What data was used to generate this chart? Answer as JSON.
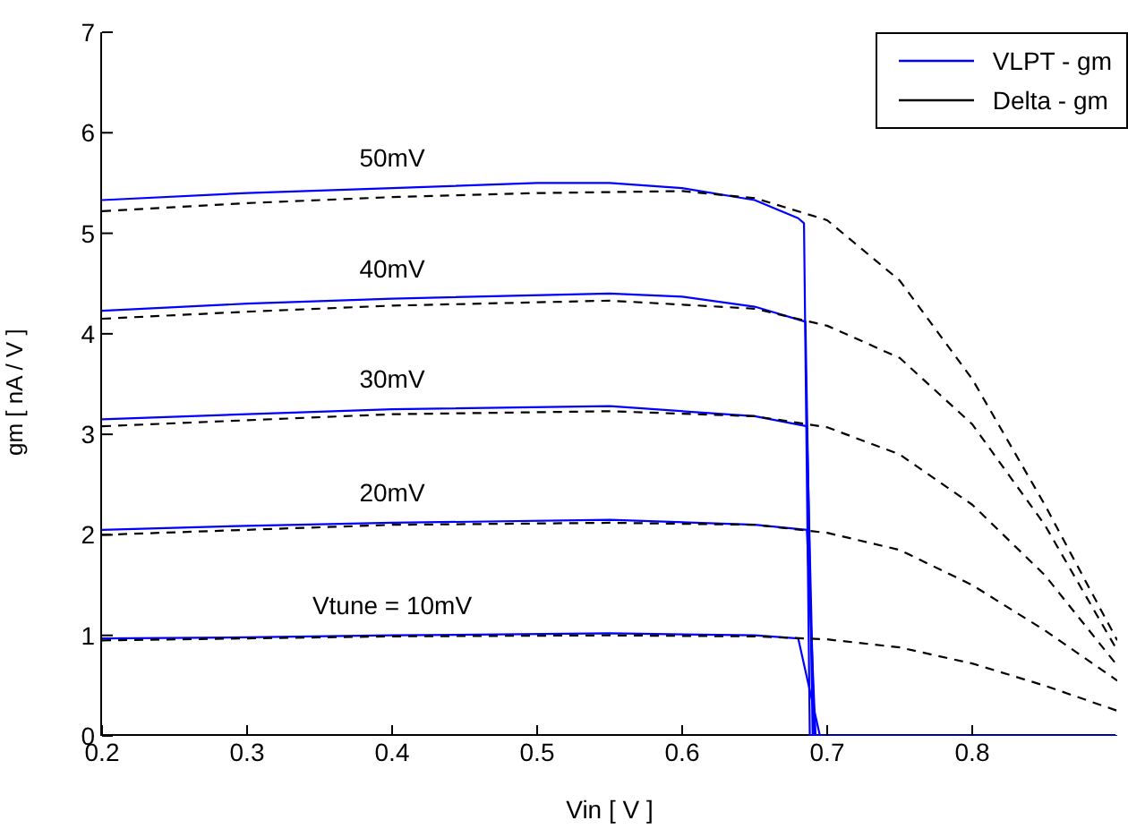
{
  "chart_data": {
    "type": "line",
    "xlabel": "Vin [ V ]",
    "ylabel": "gm [ nA / V ]",
    "xlim": [
      0.2,
      0.9
    ],
    "xticks": [
      0.2,
      0.3,
      0.4,
      0.5,
      0.6,
      0.7,
      0.8
    ],
    "ylim": [
      0,
      7
    ],
    "yticks": [
      0,
      1,
      2,
      3,
      4,
      5,
      6,
      7
    ],
    "grid": false,
    "legend": "top right",
    "marker": "none",
    "series": [
      {
        "name": "VLPT - gm",
        "color": "#0000ff",
        "line_style": "solid",
        "x": [
          0.2,
          0.3,
          0.4,
          0.5,
          0.55,
          0.6,
          0.65,
          0.68,
          0.684,
          0.688,
          0.9
        ],
        "values": [
          5.33,
          5.4,
          5.45,
          5.5,
          5.5,
          5.45,
          5.33,
          5.15,
          5.1,
          0,
          0
        ]
      },
      {
        "color": "#0000ff",
        "line_style": "solid",
        "x": [
          0.2,
          0.3,
          0.4,
          0.55,
          0.6,
          0.65,
          0.685,
          0.69
        ],
        "values": [
          4.23,
          4.3,
          4.35,
          4.4,
          4.37,
          4.27,
          4.12,
          0
        ]
      },
      {
        "color": "#0000ff",
        "line_style": "solid",
        "x": [
          0.2,
          0.3,
          0.4,
          0.55,
          0.65,
          0.686,
          0.691
        ],
        "values": [
          3.15,
          3.2,
          3.25,
          3.28,
          3.18,
          3.08,
          0
        ]
      },
      {
        "color": "#0000ff",
        "line_style": "solid",
        "x": [
          0.2,
          0.3,
          0.4,
          0.55,
          0.65,
          0.686,
          0.692
        ],
        "values": [
          2.05,
          2.09,
          2.12,
          2.15,
          2.1,
          2.05,
          0
        ]
      },
      {
        "color": "#0000ff",
        "line_style": "solid",
        "x": [
          0.2,
          0.3,
          0.4,
          0.55,
          0.65,
          0.68,
          0.695
        ],
        "values": [
          0.97,
          0.98,
          1.0,
          1.02,
          1.0,
          0.97,
          0
        ]
      },
      {
        "name": "Delta - gm",
        "color": "#000000",
        "line_style": "dashed",
        "x": [
          0.2,
          0.3,
          0.4,
          0.5,
          0.6,
          0.65,
          0.7,
          0.75,
          0.8,
          0.85,
          0.9
        ],
        "values": [
          5.22,
          5.3,
          5.36,
          5.4,
          5.42,
          5.35,
          5.13,
          4.53,
          3.55,
          2.3,
          0.95
        ]
      },
      {
        "color": "#000000",
        "line_style": "dashed",
        "x": [
          0.2,
          0.3,
          0.4,
          0.55,
          0.65,
          0.7,
          0.75,
          0.8,
          0.85,
          0.9
        ],
        "values": [
          4.15,
          4.22,
          4.28,
          4.33,
          4.25,
          4.08,
          3.76,
          3.1,
          2.1,
          0.85
        ]
      },
      {
        "color": "#000000",
        "line_style": "dashed",
        "x": [
          0.2,
          0.3,
          0.4,
          0.55,
          0.65,
          0.7,
          0.75,
          0.8,
          0.85,
          0.9
        ],
        "values": [
          3.08,
          3.14,
          3.2,
          3.23,
          3.18,
          3.07,
          2.8,
          2.3,
          1.6,
          0.7
        ]
      },
      {
        "color": "#000000",
        "line_style": "dashed",
        "x": [
          0.2,
          0.3,
          0.4,
          0.55,
          0.65,
          0.7,
          0.75,
          0.8,
          0.85,
          0.9
        ],
        "values": [
          2.0,
          2.05,
          2.1,
          2.12,
          2.1,
          2.02,
          1.85,
          1.5,
          1.05,
          0.55
        ]
      },
      {
        "color": "#000000",
        "line_style": "dashed",
        "x": [
          0.2,
          0.3,
          0.4,
          0.55,
          0.65,
          0.7,
          0.75,
          0.8,
          0.85,
          0.9
        ],
        "values": [
          0.95,
          0.97,
          0.99,
          1.0,
          0.99,
          0.96,
          0.88,
          0.72,
          0.5,
          0.25
        ]
      }
    ],
    "annotations": [
      "50mV",
      "40mV",
      "30mV",
      "20mV",
      "Vtune = 10mV"
    ]
  }
}
